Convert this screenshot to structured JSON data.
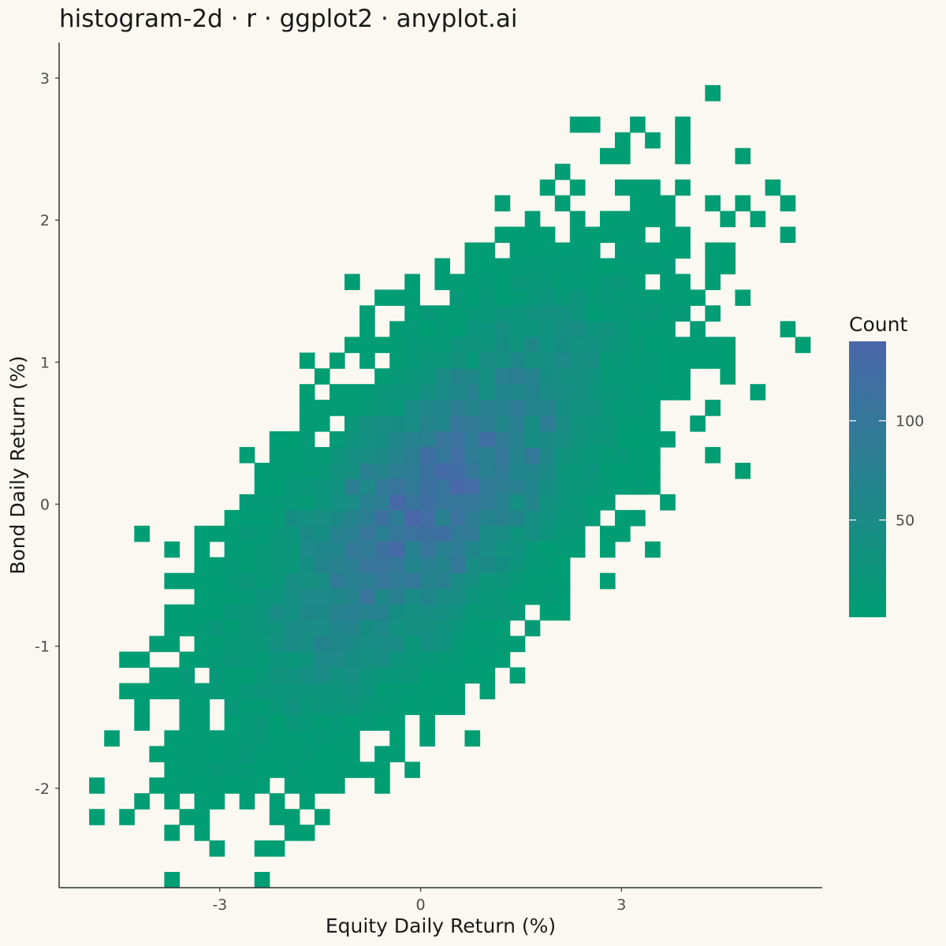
{
  "chart_data": {
    "type": "heatmap",
    "subtype": "histogram-2d",
    "title": "histogram-2d · r · ggplot2 · anyplot.ai",
    "xlabel": "Equity Daily Return (%)",
    "ylabel": "Bond Daily Return (%)",
    "xlim": [
      -5.4,
      6.0
    ],
    "ylim": [
      -2.7,
      3.25
    ],
    "x_ticks": [
      -3,
      0,
      3
    ],
    "x_tick_labels": [
      "-3",
      "0",
      "3"
    ],
    "y_ticks": [
      -2,
      -1,
      0,
      1,
      2,
      3
    ],
    "y_tick_labels": [
      "-2",
      "-1",
      "0",
      "1",
      "2",
      "3"
    ],
    "bin_width_x": 0.2244,
    "bin_width_y": 0.1108,
    "correlation_estimate": 0.7,
    "grid": false,
    "legend": {
      "title": "Count",
      "position": "right",
      "ticks": [
        50,
        100
      ],
      "tick_labels": [
        "50",
        "100"
      ],
      "range": [
        1,
        140
      ],
      "low_color": "#009E73",
      "high_color": "#4A67A9"
    },
    "peak_bin": {
      "x": 0.15,
      "y": 0.0,
      "count": 140
    },
    "outlier_bins": [
      {
        "x": 4.4,
        "y": 2.88,
        "count": 1
      },
      {
        "x": 2.6,
        "y": 2.65,
        "count": 1
      },
      {
        "x": 3.0,
        "y": 2.52,
        "count": 1
      },
      {
        "x": 3.95,
        "y": 2.42,
        "count": 1
      },
      {
        "x": 5.3,
        "y": 2.18,
        "count": 1
      },
      {
        "x": -4.9,
        "y": -2.18,
        "count": 1
      },
      {
        "x": -2.2,
        "y": -2.41,
        "count": 1
      },
      {
        "x": -4.3,
        "y": -1.14,
        "count": 1
      },
      {
        "x": -1.0,
        "y": 1.58,
        "count": 1
      },
      {
        "x": 1.4,
        "y": -1.23,
        "count": 1
      }
    ]
  },
  "colors": {
    "background": "#FAF8F1",
    "axis": "#333333",
    "low": "#009E73",
    "high": "#4A67A9"
  }
}
